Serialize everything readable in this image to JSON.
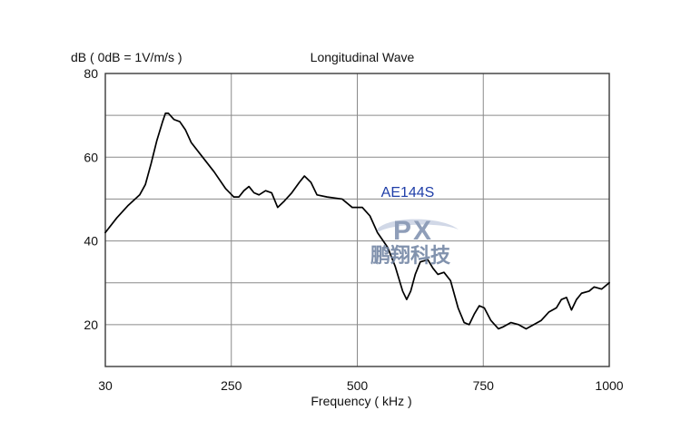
{
  "chart_data": {
    "type": "line",
    "title": "Longitudinal Wave",
    "ylabel": "dB ( 0dB = 1V/m/s )",
    "xlabel": "Frequency ( kHz )",
    "x_ticks": [
      "30",
      "250",
      "500",
      "750",
      "1000"
    ],
    "y_ticks": [
      "20",
      "40",
      "60",
      "80"
    ],
    "xlim": [
      30,
      1000
    ],
    "ylim": [
      10,
      80
    ],
    "grid": true,
    "series": [
      {
        "name": "AE144S",
        "color": "#000000",
        "label_color": "#1f3ea8",
        "points": [
          [
            30,
            42
          ],
          [
            50,
            45.5
          ],
          [
            70,
            48.5
          ],
          [
            90,
            51
          ],
          [
            100,
            53.5
          ],
          [
            110,
            58.5
          ],
          [
            120,
            64
          ],
          [
            130,
            68.5
          ],
          [
            135,
            70.5
          ],
          [
            140,
            70.5
          ],
          [
            150,
            69
          ],
          [
            160,
            68.5
          ],
          [
            170,
            66.5
          ],
          [
            180,
            63.5
          ],
          [
            200,
            60
          ],
          [
            220,
            56.5
          ],
          [
            240,
            52.5
          ],
          [
            255,
            50.5
          ],
          [
            265,
            50.5
          ],
          [
            275,
            52
          ],
          [
            285,
            53
          ],
          [
            295,
            51.5
          ],
          [
            305,
            51
          ],
          [
            318,
            52
          ],
          [
            330,
            51.5
          ],
          [
            342,
            48
          ],
          [
            355,
            49.5
          ],
          [
            370,
            51.5
          ],
          [
            385,
            54
          ],
          [
            395,
            55.5
          ],
          [
            408,
            54
          ],
          [
            420,
            51
          ],
          [
            440,
            50.5
          ],
          [
            470,
            50
          ],
          [
            490,
            48
          ],
          [
            510,
            48
          ],
          [
            525,
            46
          ],
          [
            540,
            42
          ],
          [
            560,
            38.5
          ],
          [
            575,
            34
          ],
          [
            590,
            28
          ],
          [
            598,
            26
          ],
          [
            606,
            28
          ],
          [
            615,
            32
          ],
          [
            625,
            35
          ],
          [
            640,
            35.5
          ],
          [
            650,
            33.5
          ],
          [
            660,
            32
          ],
          [
            672,
            32.5
          ],
          [
            685,
            30.5
          ],
          [
            700,
            24
          ],
          [
            712,
            20.5
          ],
          [
            722,
            20
          ],
          [
            732,
            22.5
          ],
          [
            742,
            24.5
          ],
          [
            752,
            24
          ],
          [
            765,
            21
          ],
          [
            780,
            19
          ],
          [
            790,
            19.5
          ],
          [
            805,
            20.5
          ],
          [
            820,
            20
          ],
          [
            835,
            19
          ],
          [
            850,
            20
          ],
          [
            865,
            21
          ],
          [
            880,
            23
          ],
          [
            895,
            24
          ],
          [
            905,
            26
          ],
          [
            915,
            26.5
          ],
          [
            925,
            23.5
          ],
          [
            935,
            26
          ],
          [
            945,
            27.5
          ],
          [
            960,
            28
          ],
          [
            970,
            29
          ],
          [
            985,
            28.5
          ],
          [
            1000,
            30
          ]
        ]
      }
    ]
  },
  "series_label": "AE144S",
  "watermark": {
    "logo_text": "PX",
    "company_text": "鹏翔科技",
    "color": "#6c7f9f"
  }
}
